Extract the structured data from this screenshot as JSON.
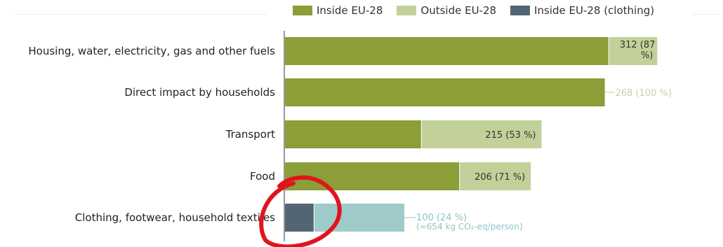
{
  "chart_data": {
    "type": "bar",
    "orientation": "horizontal",
    "stacked": true,
    "legend": [
      "Inside EU-28",
      "Outside EU-28",
      "Inside EU-28 (clothing)"
    ],
    "legend_position": "top",
    "colors": {
      "inside": "#8c9e37",
      "outside": "#c2d19a",
      "inside_clothing": "#536574",
      "outside_clothing": "#9fcaca",
      "axis": "#555555",
      "label_pale": "#c9d2a6",
      "label_clothing": "#8fc3c3",
      "circle": "#e0141e"
    },
    "categories": [
      "Housing, water, electricity, gas and other fuels",
      "Direct impact by households",
      "Transport",
      "Food",
      "Clothing, footwear, household textiles"
    ],
    "series": [
      {
        "name": "Inside EU-28",
        "values": [
          271,
          268,
          114,
          146,
          24
        ]
      },
      {
        "name": "Outside EU-28",
        "values": [
          41,
          0,
          101,
          60,
          76
        ]
      }
    ],
    "data_labels": [
      [
        "312 (87",
        "%)"
      ],
      [
        "268 (100 %)"
      ],
      [
        "215 (53 %)"
      ],
      [
        "206 (71 %)"
      ],
      [
        "100 (24 %)",
        "(=654 kg CO₂-eq/person)"
      ]
    ],
    "grid": false
  },
  "annotation": {
    "shape": "hand-drawn circle",
    "target": "Clothing, footwear, household textiles"
  }
}
